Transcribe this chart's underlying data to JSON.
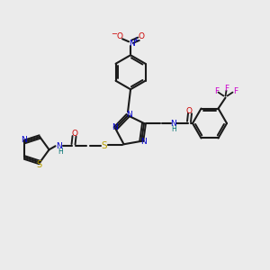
{
  "background_color": "#ebebeb",
  "bond_color": "#1a1a1a",
  "atom_colors": {
    "N": "#0000cc",
    "O": "#cc0000",
    "S": "#b8a000",
    "F": "#cc00cc",
    "H": "#007070",
    "C": "#1a1a1a"
  },
  "figsize": [
    3.0,
    3.0
  ],
  "dpi": 100
}
